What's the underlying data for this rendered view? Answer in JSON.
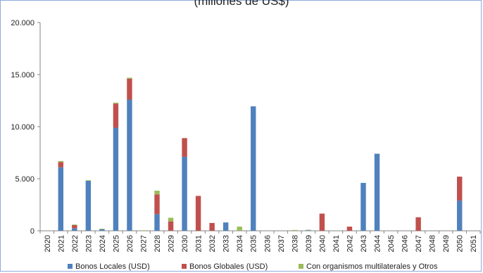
{
  "chart_data": {
    "type": "bar",
    "stacked": true,
    "title": "(millones de US$)",
    "categories": [
      "2020",
      "2021",
      "2022",
      "2023",
      "2024",
      "2025",
      "2026",
      "2027",
      "2028",
      "2029",
      "2030",
      "2031",
      "2032",
      "2033",
      "2034",
      "2035",
      "2036",
      "2037",
      "2038",
      "2039",
      "2040",
      "2041",
      "2042",
      "2043",
      "2044",
      "2045",
      "2046",
      "2047",
      "2048",
      "2049",
      "2050",
      "2051"
    ],
    "series": [
      {
        "name": "Bonos Locales (USD)",
        "color": "#4f81bd",
        "values": [
          0,
          6100,
          250,
          4800,
          150,
          9900,
          12600,
          0,
          1600,
          0,
          7100,
          0,
          0,
          800,
          0,
          11950,
          0,
          0,
          0,
          50,
          0,
          0,
          0,
          4600,
          7400,
          0,
          0,
          0,
          0,
          0,
          2900,
          0
        ]
      },
      {
        "name": "Bonos Globales (USD)",
        "color": "#c0504d",
        "values": [
          0,
          500,
          300,
          0,
          0,
          2300,
          2000,
          0,
          1900,
          900,
          1800,
          3350,
          750,
          0,
          0,
          0,
          0,
          0,
          0,
          0,
          1650,
          0,
          400,
          0,
          0,
          0,
          0,
          1300,
          0,
          0,
          2300,
          0
        ]
      },
      {
        "name": "Con organismos multilaterales y Otros",
        "color": "#9bbb59",
        "values": [
          0,
          100,
          50,
          50,
          50,
          100,
          100,
          50,
          350,
          350,
          0,
          0,
          0,
          0,
          400,
          0,
          0,
          0,
          80,
          50,
          0,
          0,
          0,
          0,
          0,
          0,
          0,
          0,
          0,
          0,
          0,
          0
        ]
      }
    ],
    "ylim": [
      0,
      20000
    ],
    "yticks": [
      0,
      5000,
      10000,
      15000,
      20000
    ],
    "ytick_labels": [
      "0",
      "5.000",
      "10.000",
      "15.000",
      "20.000"
    ],
    "grid": false,
    "legend_position": "bottom"
  }
}
